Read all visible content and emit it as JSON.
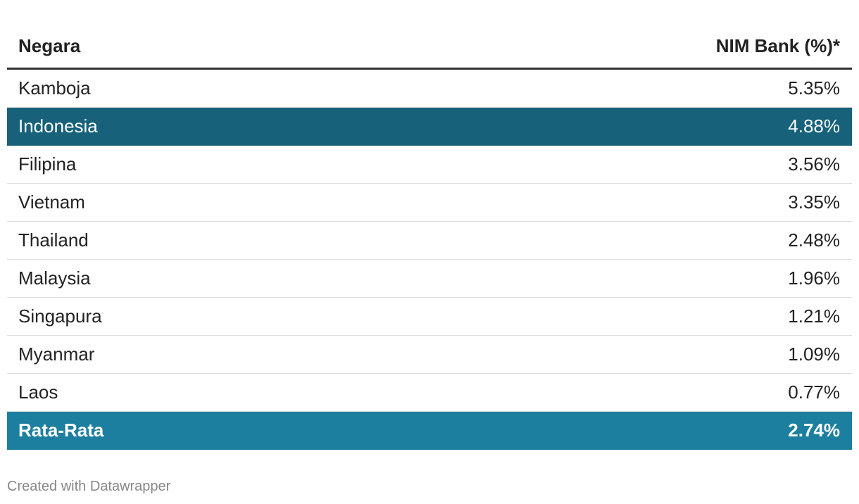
{
  "table": {
    "header": [
      "Negara",
      "NIM Bank (%)*"
    ],
    "rows": [
      [
        "Kamboja",
        "5.35%"
      ],
      [
        "Indonesia",
        "4.88%"
      ],
      [
        "Filipina",
        "3.56%"
      ],
      [
        "Vietnam",
        "3.35%"
      ],
      [
        "Thailand",
        "2.48%"
      ],
      [
        "Malaysia",
        "1.96%"
      ],
      [
        "Singapura",
        "1.21%"
      ],
      [
        "Myanmar",
        "1.09%"
      ],
      [
        "Laos",
        "0.77%"
      ],
      [
        "Rata-Rata",
        "2.74%"
      ]
    ]
  },
  "footer": "Created with Datawrapper"
}
